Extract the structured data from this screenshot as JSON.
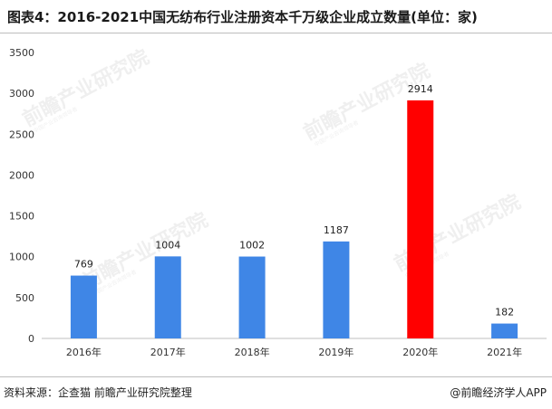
{
  "header": {
    "title": "图表4：2016-2021中国无纺布行业注册资本千万级企业成立数量(单位：家)"
  },
  "watermark": {
    "text": "前瞻产业研究院",
    "subtext": "中国产业咨询领导者"
  },
  "chart_data": {
    "type": "bar",
    "title": "图表4：2016-2021中国无纺布行业注册资本千万级企业成立数量(单位：家)",
    "categories": [
      "2016年",
      "2017年",
      "2018年",
      "2019年",
      "2020年",
      "2021年"
    ],
    "values": [
      769,
      1004,
      1002,
      1187,
      2914,
      182
    ],
    "value_labels": [
      "769",
      "1004",
      "1002",
      "1187",
      "2914",
      "182"
    ],
    "ylim": [
      0,
      3500
    ],
    "yticks": [
      0,
      500,
      1000,
      1500,
      2000,
      2500,
      3000,
      3500
    ],
    "ytick_labels": [
      "0",
      "500",
      "1000",
      "1500",
      "2000",
      "2500",
      "3000",
      "3500"
    ],
    "colors": {
      "default": "#3f86e6",
      "highlight": "#ff0000",
      "highlight_index": 4
    },
    "grid": false,
    "legend": "none",
    "xlabel": "",
    "ylabel": ""
  },
  "footer": {
    "source": "资料来源：企查猫 前瞻产业研究院整理",
    "credit": "@前瞻经济学人APP"
  }
}
